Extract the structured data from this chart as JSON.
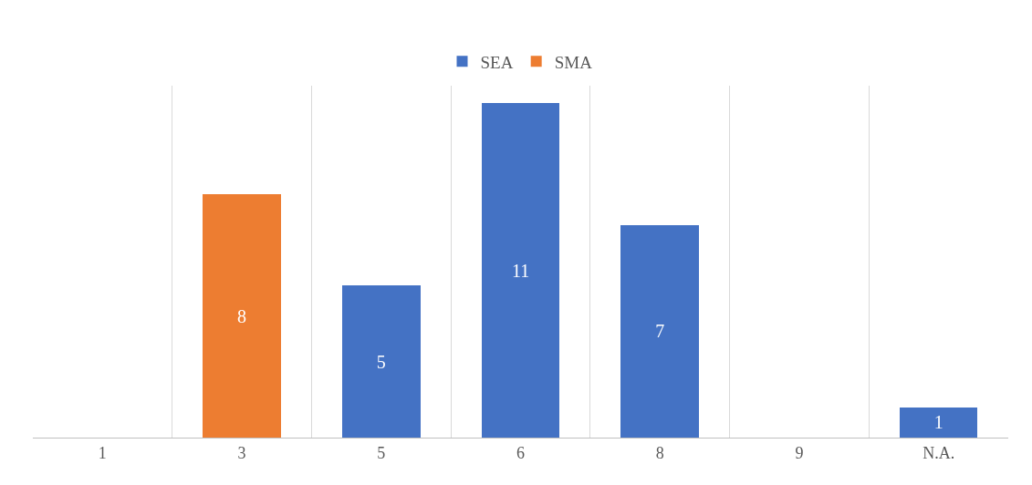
{
  "chart_data": {
    "type": "bar",
    "stacked": true,
    "categories": [
      "1",
      "3",
      "5",
      "6",
      "8",
      "9",
      "N.A."
    ],
    "series": [
      {
        "name": "SEA",
        "color": "#4472c4",
        "values": [
          null,
          null,
          5,
          11,
          7,
          null,
          1
        ]
      },
      {
        "name": "SMA",
        "color": "#ed7d31",
        "values": [
          null,
          8,
          null,
          null,
          null,
          null,
          null
        ]
      }
    ],
    "data_labels": true,
    "grid": "x",
    "legend": "top",
    "tick_labels": "x"
  }
}
